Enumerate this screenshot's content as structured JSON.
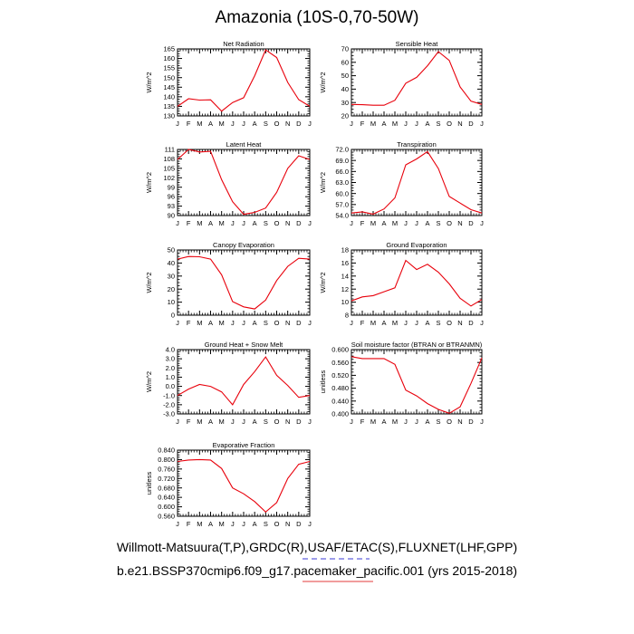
{
  "title": "Amazonia (10S-0,70-50W)",
  "footer": {
    "line1": "Willmott-Matsuura(T,P),GRDC(R),USAF/ETAC(S),FLUXNET(LHF,GPP)",
    "line2": "b.e21.BSSP370cmip6.f09_g17.pacemaker_pacific.001 (yrs 2015-2018)"
  },
  "colors": {
    "line": "#e8000b",
    "axis": "#000000",
    "underline_blue": "#3b3bd6",
    "underline_red": "#e33b3b"
  },
  "chart_data": [
    {
      "type": "line",
      "title": "Net Radiation",
      "ylabel": "W/m^2",
      "x": [
        "J",
        "F",
        "M",
        "A",
        "M",
        "J",
        "J",
        "A",
        "S",
        "O",
        "N",
        "D",
        "J"
      ],
      "values": [
        135,
        139,
        138.3,
        138.4,
        132.5,
        137,
        139.5,
        151,
        164.5,
        160.5,
        147.5,
        138.5,
        135
      ],
      "ylim": [
        130,
        165
      ],
      "yticks": [
        "130",
        "135",
        "140",
        "145",
        "150",
        "155",
        "160",
        "165"
      ]
    },
    {
      "type": "line",
      "title": "Sensible Heat",
      "ylabel": "W/m^2",
      "x": [
        "J",
        "F",
        "M",
        "A",
        "M",
        "J",
        "J",
        "A",
        "S",
        "O",
        "N",
        "D",
        "J"
      ],
      "values": [
        28.6,
        28.4,
        28,
        28,
        31.7,
        44.4,
        48.8,
        57.4,
        68,
        61.4,
        41.6,
        31,
        28.6
      ],
      "ylim": [
        20,
        70
      ],
      "yticks": [
        "20",
        "30",
        "40",
        "50",
        "60",
        "70"
      ]
    },
    {
      "type": "line",
      "title": "Latent Heat",
      "ylabel": "W/m^2",
      "x": [
        "J",
        "F",
        "M",
        "A",
        "M",
        "J",
        "J",
        "A",
        "S",
        "O",
        "N",
        "D",
        "J"
      ],
      "values": [
        107.8,
        111,
        110.2,
        110.4,
        101.4,
        94.4,
        90.4,
        91,
        92.4,
        97.4,
        105,
        109,
        107.8
      ],
      "ylim": [
        90,
        111
      ],
      "yticks": [
        "90",
        "93",
        "96",
        "99",
        "102",
        "105",
        "108",
        "111"
      ]
    },
    {
      "type": "line",
      "title": "Transpiration",
      "ylabel": "W/m^2",
      "x": [
        "J",
        "F",
        "M",
        "A",
        "M",
        "J",
        "J",
        "A",
        "S",
        "O",
        "N",
        "D",
        "J"
      ],
      "values": [
        54.7,
        55,
        54.4,
        55.8,
        58.8,
        67.8,
        69.4,
        71.4,
        66.8,
        59.2,
        57.4,
        55.6,
        54.7
      ],
      "ylim": [
        54,
        72
      ],
      "yticks": [
        "54.0",
        "57.0",
        "60.0",
        "63.0",
        "66.0",
        "69.0",
        "72.0"
      ]
    },
    {
      "type": "line",
      "title": "Canopy Evaporation",
      "ylabel": "W/m^2",
      "x": [
        "J",
        "F",
        "M",
        "A",
        "M",
        "J",
        "J",
        "A",
        "S",
        "O",
        "N",
        "D",
        "J"
      ],
      "values": [
        43,
        45,
        44.8,
        43,
        31,
        10.4,
        6.4,
        4.8,
        11.6,
        26.6,
        37.4,
        43.6,
        43
      ],
      "ylim": [
        0,
        50
      ],
      "yticks": [
        "0",
        "10",
        "20",
        "30",
        "40",
        "50"
      ]
    },
    {
      "type": "line",
      "title": "Ground Evaporation",
      "ylabel": "W/m^2",
      "x": [
        "J",
        "F",
        "M",
        "A",
        "M",
        "J",
        "J",
        "A",
        "S",
        "O",
        "N",
        "D",
        "J"
      ],
      "values": [
        10.2,
        10.8,
        11,
        11.6,
        12.2,
        16.4,
        15,
        15.8,
        14.6,
        12.8,
        10.6,
        9.4,
        10.4
      ],
      "ylim": [
        8,
        18
      ],
      "yticks": [
        "8",
        "10",
        "12",
        "14",
        "16",
        "18"
      ]
    },
    {
      "type": "line",
      "title": "Ground Heat + Snow Melt",
      "ylabel": "W/m^2",
      "x": [
        "J",
        "F",
        "M",
        "A",
        "M",
        "J",
        "J",
        "A",
        "S",
        "O",
        "N",
        "D",
        "J"
      ],
      "values": [
        -1,
        -0.3,
        0.2,
        0,
        -0.6,
        -2,
        0.2,
        1.6,
        3.2,
        1.2,
        0.1,
        -1.2,
        -1
      ],
      "ylim": [
        -3,
        4
      ],
      "yticks": [
        "-3.0",
        "-2.0",
        "-1.0",
        "0.0",
        "1.0",
        "2.0",
        "3.0",
        "4.0"
      ]
    },
    {
      "type": "line",
      "title": "Soil moisture factor (BTRAN or BTRANMN)",
      "ylabel": "unitless",
      "x": [
        "J",
        "F",
        "M",
        "A",
        "M",
        "J",
        "J",
        "A",
        "S",
        "O",
        "N",
        "D",
        "J"
      ],
      "values": [
        0.578,
        0.572,
        0.572,
        0.572,
        0.554,
        0.474,
        0.456,
        0.432,
        0.414,
        0.402,
        0.422,
        0.495,
        0.574
      ],
      "ylim": [
        0.4,
        0.6
      ],
      "yticks": [
        "0.400",
        "0.440",
        "0.480",
        "0.520",
        "0.560",
        "0.600"
      ]
    },
    {
      "type": "line",
      "title": "Evaporative Fraction",
      "ylabel": "unitless",
      "x": [
        "J",
        "F",
        "M",
        "A",
        "M",
        "J",
        "J",
        "A",
        "S",
        "O",
        "N",
        "D",
        "J"
      ],
      "values": [
        0.792,
        0.798,
        0.8,
        0.798,
        0.762,
        0.68,
        0.655,
        0.622,
        0.578,
        0.618,
        0.72,
        0.78,
        0.792
      ],
      "ylim": [
        0.56,
        0.84
      ],
      "yticks": [
        "0.560",
        "0.600",
        "0.640",
        "0.680",
        "0.720",
        "0.760",
        "0.800",
        "0.840"
      ]
    }
  ]
}
